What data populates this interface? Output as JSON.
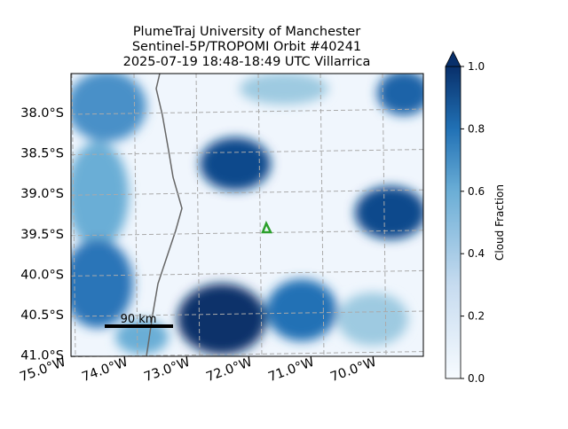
{
  "title_lines": [
    "PlumeTraj    University of Manchester",
    "Sentinel-5P/TROPOMI Orbit #40241",
    "2025-07-19    18:48-18:49 UTC    Villarrica"
  ],
  "lat_labels": [
    {
      "value": -38.0,
      "label": "38.0°S"
    },
    {
      "value": -38.5,
      "label": "38.5°S"
    },
    {
      "value": -39.0,
      "label": "39.0°S"
    },
    {
      "value": -39.5,
      "label": "39.5°S"
    },
    {
      "value": -40.0,
      "label": "40.0°S"
    },
    {
      "value": -40.5,
      "label": "40.5°S"
    },
    {
      "value": -41.0,
      "label": "41.0°S"
    }
  ],
  "lon_labels": [
    {
      "value": -75.0,
      "label": "75.0°W"
    },
    {
      "value": -74.0,
      "label": "74.0°W"
    },
    {
      "value": -73.0,
      "label": "73.0°W"
    },
    {
      "value": -72.0,
      "label": "72.0°W"
    },
    {
      "value": -71.0,
      "label": "71.0°W"
    },
    {
      "value": -70.0,
      "label": "70.0°W"
    }
  ],
  "scale_bar": "90 km",
  "colorbar": {
    "label": "Cloud Fraction",
    "lim": [
      0,
      1
    ],
    "ticks": [
      {
        "value": 0,
        "label": "0.0"
      },
      {
        "value": 0.2,
        "label": "0.2"
      },
      {
        "value": 0.4,
        "label": "0.4"
      },
      {
        "value": 0.6,
        "label": "0.6"
      },
      {
        "value": 0.8,
        "label": "0.8"
      },
      {
        "value": 1,
        "label": "1.0"
      }
    ]
  }
}
